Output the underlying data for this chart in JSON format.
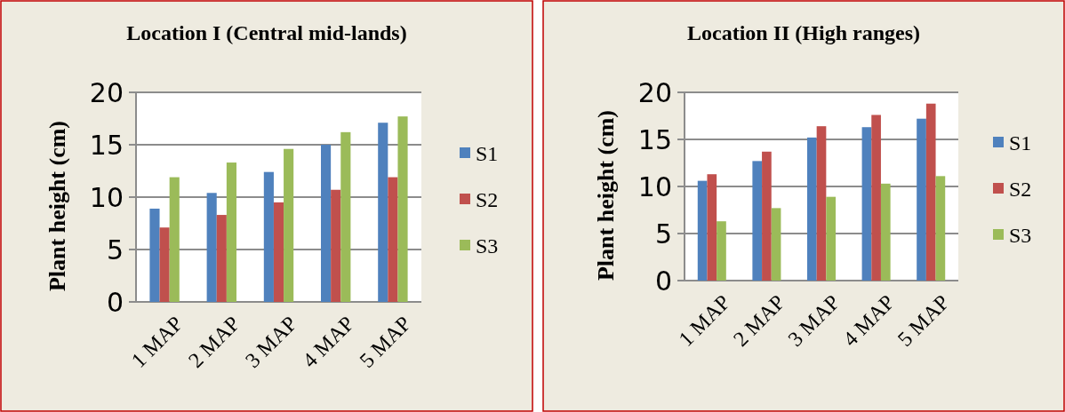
{
  "chart_data": [
    {
      "type": "bar",
      "title": "Location I (Central mid-lands)",
      "ylabel": "Plant height (cm)",
      "categories": [
        "1 MAP",
        "2 MAP",
        "3 MAP",
        "4 MAP",
        "5 MAP"
      ],
      "series": [
        {
          "name": "S1",
          "color": "#4f81bd",
          "values": [
            8.9,
            10.4,
            12.4,
            15.0,
            17.1
          ]
        },
        {
          "name": "S2",
          "color": "#c0504d",
          "values": [
            7.1,
            8.3,
            9.5,
            10.7,
            11.9
          ]
        },
        {
          "name": "S3",
          "color": "#9bbb59",
          "values": [
            11.9,
            13.3,
            14.6,
            16.2,
            17.7
          ]
        }
      ],
      "ylim": [
        0,
        20
      ],
      "yticks": [
        0,
        5,
        10,
        15,
        20
      ],
      "grid": "y",
      "legend": "right"
    },
    {
      "type": "bar",
      "title": "Location II (High ranges)",
      "ylabel": "Plant height (cm)",
      "categories": [
        "1 MAP",
        "2 MAP",
        "3 MAP",
        "4 MAP",
        "5 MAP"
      ],
      "series": [
        {
          "name": "S1",
          "color": "#4f81bd",
          "values": [
            10.6,
            12.7,
            15.2,
            16.3,
            17.2
          ]
        },
        {
          "name": "S2",
          "color": "#c0504d",
          "values": [
            11.3,
            13.7,
            16.4,
            17.6,
            18.8
          ]
        },
        {
          "name": "S3",
          "color": "#9bbb59",
          "values": [
            6.3,
            7.7,
            8.9,
            10.3,
            11.1
          ]
        }
      ],
      "ylim": [
        0,
        20
      ],
      "yticks": [
        0,
        5,
        10,
        15,
        20
      ],
      "grid": "y",
      "legend": "right"
    }
  ]
}
